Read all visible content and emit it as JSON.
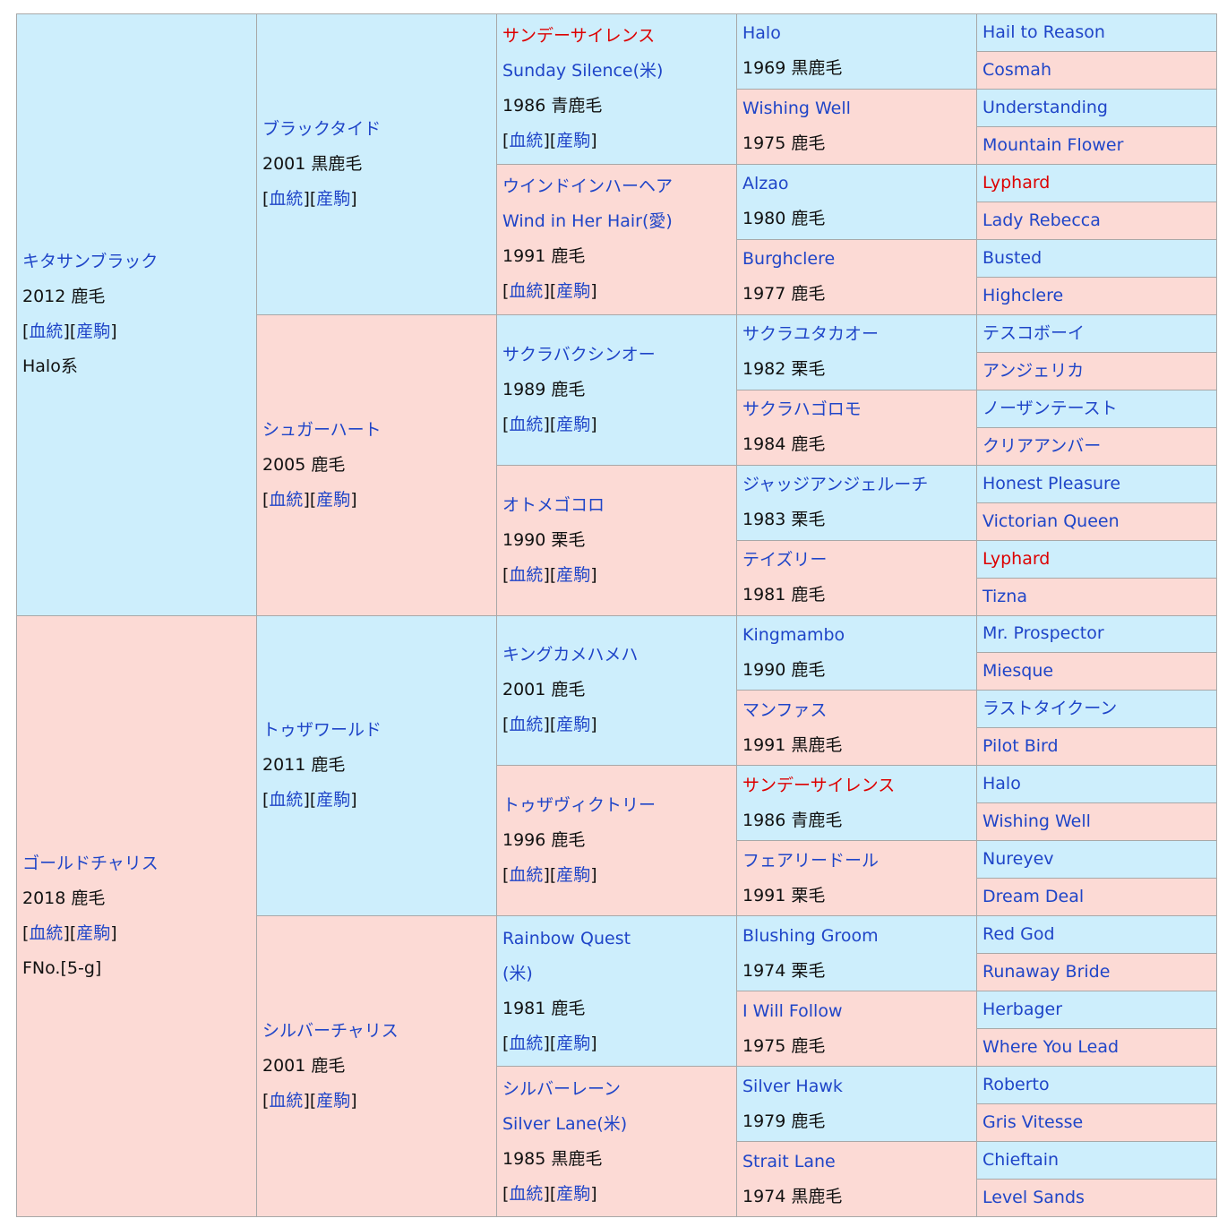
{
  "link_line": [
    "[",
    "血統",
    "][",
    "産駒",
    "]"
  ],
  "generations": [
    [
      {
        "lines": [
          "キタサンブラック"
        ],
        "year": "2012 鹿毛",
        "links": true,
        "extra": "Halo系"
      },
      {
        "lines": [
          "ゴールドチャリス"
        ],
        "year": "2018 鹿毛",
        "links": true,
        "extra": "FNo.[5-g]"
      }
    ],
    [
      {
        "lines": [
          "ブラックタイド"
        ],
        "year": "2001 黒鹿毛",
        "links": true
      },
      {
        "lines": [
          "シュガーハート"
        ],
        "year": "2005 鹿毛",
        "links": true
      },
      {
        "lines": [
          "トゥザワールド"
        ],
        "year": "2011 鹿毛",
        "links": true
      },
      {
        "lines": [
          "シルバーチャリス"
        ],
        "year": "2001 鹿毛",
        "links": true
      }
    ],
    [
      {
        "lines": [
          "サンデーサイレンス",
          "Sunday Silence(米)"
        ],
        "year": "1986 青鹿毛",
        "links": true,
        "highlight": true
      },
      {
        "lines": [
          "ウインドインハーヘア",
          "Wind in Her Hair(愛)"
        ],
        "year": "1991 鹿毛",
        "links": true
      },
      {
        "lines": [
          "サクラバクシンオー"
        ],
        "year": "1989 鹿毛",
        "links": true
      },
      {
        "lines": [
          "オトメゴコロ"
        ],
        "year": "1990 栗毛",
        "links": true
      },
      {
        "lines": [
          "キングカメハメハ"
        ],
        "year": "2001 鹿毛",
        "links": true
      },
      {
        "lines": [
          "トゥザヴィクトリー"
        ],
        "year": "1996 鹿毛",
        "links": true
      },
      {
        "lines": [
          "Rainbow Quest",
          "(米)"
        ],
        "year": "1981 鹿毛",
        "links": true
      },
      {
        "lines": [
          "シルバーレーン",
          "Silver Lane(米)"
        ],
        "year": "1985 黒鹿毛",
        "links": true
      }
    ],
    [
      {
        "lines": [
          "Halo"
        ],
        "year": "1969 黒鹿毛"
      },
      {
        "lines": [
          "Wishing Well"
        ],
        "year": "1975 鹿毛"
      },
      {
        "lines": [
          "Alzao"
        ],
        "year": "1980 鹿毛"
      },
      {
        "lines": [
          "Burghclere"
        ],
        "year": "1977 鹿毛"
      },
      {
        "lines": [
          "サクラユタカオー"
        ],
        "year": "1982 栗毛"
      },
      {
        "lines": [
          "サクラハゴロモ"
        ],
        "year": "1984 鹿毛"
      },
      {
        "lines": [
          "ジャッジアンジェルーチ"
        ],
        "year": "1983 栗毛"
      },
      {
        "lines": [
          "テイズリー"
        ],
        "year": "1981 鹿毛"
      },
      {
        "lines": [
          "Kingmambo"
        ],
        "year": "1990 鹿毛"
      },
      {
        "lines": [
          "マンファス"
        ],
        "year": "1991 黒鹿毛"
      },
      {
        "lines": [
          "サンデーサイレンス"
        ],
        "year": "1986 青鹿毛",
        "highlight": true
      },
      {
        "lines": [
          "フェアリードール"
        ],
        "year": "1991 栗毛"
      },
      {
        "lines": [
          "Blushing Groom"
        ],
        "year": "1974 栗毛"
      },
      {
        "lines": [
          "I Will Follow"
        ],
        "year": "1975 鹿毛"
      },
      {
        "lines": [
          "Silver Hawk"
        ],
        "year": "1979 鹿毛"
      },
      {
        "lines": [
          "Strait Lane"
        ],
        "year": "1974 黒鹿毛"
      }
    ],
    [
      {
        "lines": [
          "Hail to Reason"
        ]
      },
      {
        "lines": [
          "Cosmah"
        ]
      },
      {
        "lines": [
          "Understanding"
        ]
      },
      {
        "lines": [
          "Mountain Flower"
        ]
      },
      {
        "lines": [
          "Lyphard"
        ],
        "highlight": true
      },
      {
        "lines": [
          "Lady Rebecca"
        ]
      },
      {
        "lines": [
          "Busted"
        ]
      },
      {
        "lines": [
          "Highclere"
        ]
      },
      {
        "lines": [
          "テスコボーイ"
        ]
      },
      {
        "lines": [
          "アンジェリカ"
        ]
      },
      {
        "lines": [
          "ノーザンテースト"
        ]
      },
      {
        "lines": [
          "クリアアンバー"
        ]
      },
      {
        "lines": [
          "Honest Pleasure"
        ]
      },
      {
        "lines": [
          "Victorian Queen"
        ]
      },
      {
        "lines": [
          "Lyphard"
        ],
        "highlight": true
      },
      {
        "lines": [
          "Tizna"
        ]
      },
      {
        "lines": [
          "Mr. Prospector"
        ]
      },
      {
        "lines": [
          "Miesque"
        ]
      },
      {
        "lines": [
          "ラストタイクーン"
        ]
      },
      {
        "lines": [
          "Pilot Bird"
        ]
      },
      {
        "lines": [
          "Halo"
        ]
      },
      {
        "lines": [
          "Wishing Well"
        ]
      },
      {
        "lines": [
          "Nureyev"
        ]
      },
      {
        "lines": [
          "Dream Deal"
        ]
      },
      {
        "lines": [
          "Red God"
        ]
      },
      {
        "lines": [
          "Runaway Bride"
        ]
      },
      {
        "lines": [
          "Herbager"
        ]
      },
      {
        "lines": [
          "Where You Lead"
        ]
      },
      {
        "lines": [
          "Roberto"
        ]
      },
      {
        "lines": [
          "Gris Vitesse"
        ]
      },
      {
        "lines": [
          "Chieftain"
        ]
      },
      {
        "lines": [
          "Level Sands"
        ]
      }
    ]
  ]
}
